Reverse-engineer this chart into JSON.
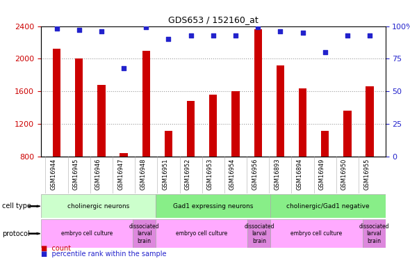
{
  "title": "GDS653 / 152160_at",
  "samples": [
    "GSM16944",
    "GSM16945",
    "GSM16946",
    "GSM16947",
    "GSM16948",
    "GSM16951",
    "GSM16952",
    "GSM16953",
    "GSM16954",
    "GSM16956",
    "GSM16893",
    "GSM16894",
    "GSM16949",
    "GSM16950",
    "GSM16955"
  ],
  "counts": [
    2120,
    2000,
    1680,
    840,
    2100,
    1120,
    1480,
    1560,
    1600,
    2360,
    1920,
    1640,
    1120,
    1360,
    1660
  ],
  "percentiles": [
    98,
    97,
    96,
    68,
    99,
    90,
    93,
    93,
    93,
    99,
    96,
    95,
    80,
    93,
    93
  ],
  "ylim_left": [
    800,
    2400
  ],
  "ylim_right": [
    0,
    100
  ],
  "yticks_left": [
    800,
    1200,
    1600,
    2000,
    2400
  ],
  "yticks_right": [
    0,
    25,
    50,
    75,
    100
  ],
  "bar_color": "#cc0000",
  "dot_color": "#2222cc",
  "cell_types": [
    {
      "label": "cholinergic neurons",
      "start": 0,
      "end": 5,
      "color": "#ccffcc"
    },
    {
      "label": "Gad1 expressing neurons",
      "start": 5,
      "end": 10,
      "color": "#88ee88"
    },
    {
      "label": "cholinergic/Gad1 negative",
      "start": 10,
      "end": 15,
      "color": "#88ee88"
    }
  ],
  "protocols": [
    {
      "label": "embryo cell culture",
      "start": 0,
      "end": 4,
      "color": "#ffaaff"
    },
    {
      "label": "dissociated\nlarval\nbrain",
      "start": 4,
      "end": 5,
      "color": "#dd88dd"
    },
    {
      "label": "embryo cell culture",
      "start": 5,
      "end": 9,
      "color": "#ffaaff"
    },
    {
      "label": "dissociated\nlarval\nbrain",
      "start": 9,
      "end": 10,
      "color": "#dd88dd"
    },
    {
      "label": "embryo cell culture",
      "start": 10,
      "end": 14,
      "color": "#ffaaff"
    },
    {
      "label": "dissociated\nlarval\nbrain",
      "start": 14,
      "end": 15,
      "color": "#dd88dd"
    }
  ],
  "legend_count_color": "#cc0000",
  "legend_dot_color": "#2222cc",
  "bg_color": "#ffffff",
  "axis_color_left": "#cc0000",
  "axis_color_right": "#2222cc",
  "grid_color": "#999999"
}
